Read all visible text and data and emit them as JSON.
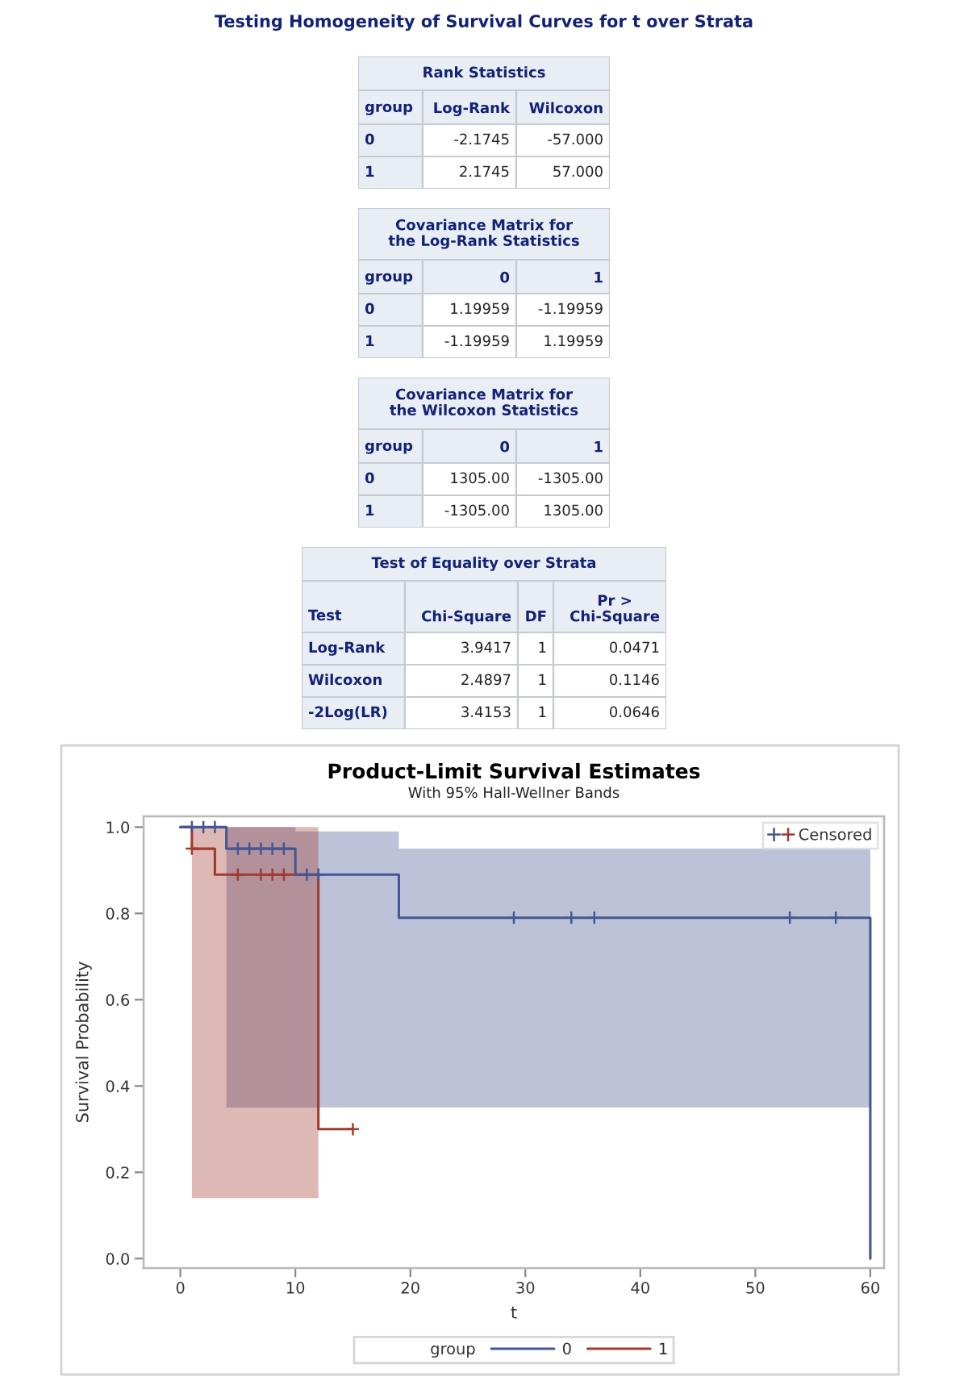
{
  "chart_data": [
    {
      "type": "other",
      "title": "Testing Homogeneity of Survival Curves for t over Strata"
    },
    {
      "type": "other",
      "title": "Rank Statistics",
      "categories": [
        "group",
        "Log-Rank",
        "Wilcoxon"
      ],
      "cell_labels": [
        [
          "0",
          "-2.1745",
          "-57.000"
        ],
        [
          "1",
          "2.1745",
          "57.000"
        ]
      ]
    },
    {
      "type": "other",
      "title": "Covariance Matrix for\nthe Log-Rank Statistics",
      "categories": [
        "group",
        "0",
        "1"
      ],
      "cell_labels": [
        [
          "0",
          "1.19959",
          "-1.19959"
        ],
        [
          "1",
          "-1.19959",
          "1.19959"
        ]
      ]
    },
    {
      "type": "other",
      "title": "Covariance Matrix for\nthe Wilcoxon Statistics",
      "categories": [
        "group",
        "0",
        "1"
      ],
      "cell_labels": [
        [
          "0",
          "1305.00",
          "-1305.00"
        ],
        [
          "1",
          "-1305.00",
          "1305.00"
        ]
      ]
    },
    {
      "type": "other",
      "title": "Test of Equality over Strata",
      "categories": [
        "Test",
        "Chi-Square",
        "DF",
        "Pr >\nChi-Square"
      ],
      "cell_labels": [
        [
          "Log-Rank",
          "3.9417",
          "1",
          "0.0471"
        ],
        [
          "Wilcoxon",
          "2.4897",
          "1",
          "0.1146"
        ],
        [
          "-2Log(LR)",
          "3.4153",
          "1",
          "0.0646"
        ]
      ]
    },
    {
      "type": "step",
      "title": "Product-Limit Survival Estimates",
      "subtitle": "With 95% Hall-Wellner Bands",
      "xlabel": "t",
      "ylabel": "Survival Probability",
      "legend_title": "group",
      "legend": "bottom",
      "xlim": [
        -3.2,
        61.2
      ],
      "ylim": [
        -0.022,
        1.025
      ],
      "xticks": [
        0,
        10,
        20,
        30,
        40,
        50,
        60
      ],
      "yticks": [
        {
          "value": 0,
          "label": "0.0"
        },
        {
          "value": 0.2,
          "label": "0.2"
        },
        {
          "value": 0.4,
          "label": "0.4"
        },
        {
          "value": 0.6,
          "label": "0.6"
        },
        {
          "value": 0.8,
          "label": "0.8"
        },
        {
          "value": 1,
          "label": "1.0"
        }
      ],
      "series": [
        {
          "name": "0",
          "color": "#445694",
          "x": [
            0,
            4,
            10,
            19,
            60
          ],
          "values": [
            1.0,
            0.95,
            0.89,
            0.79,
            0.0
          ],
          "lower": [
            null,
            0.35,
            0.35,
            0.35,
            0.35
          ],
          "upper": [
            null,
            1.0,
            0.99,
            0.95,
            0.95
          ]
        },
        {
          "name": "1",
          "color": "#a23a2e",
          "x": [
            0,
            1,
            3,
            12,
            15
          ],
          "values": [
            1.0,
            0.95,
            0.89,
            0.3,
            0.3
          ],
          "lower": [
            null,
            0.14,
            0.14,
            0.14,
            null
          ],
          "upper": [
            null,
            1.0,
            1.0,
            1.0,
            null
          ]
        },
        {
          "name": "Censored",
          "type": "scatter",
          "marker": "cross",
          "x": [
            1,
            2,
            3,
            5,
            6,
            7,
            8,
            9,
            11,
            12,
            29,
            34,
            36,
            53,
            57,
            1,
            5,
            7,
            8,
            9,
            15
          ],
          "values": [
            1.0,
            1.0,
            1.0,
            0.95,
            0.95,
            0.95,
            0.95,
            0.95,
            0.89,
            0.89,
            0.79,
            0.79,
            0.79,
            0.79,
            0.79,
            0.95,
            0.89,
            0.89,
            0.89,
            0.89,
            0.3
          ],
          "colors": [
            "#445694",
            "#445694",
            "#445694",
            "#445694",
            "#445694",
            "#445694",
            "#445694",
            "#445694",
            "#445694",
            "#445694",
            "#445694",
            "#445694",
            "#445694",
            "#445694",
            "#445694",
            "#a23a2e",
            "#a23a2e",
            "#a23a2e",
            "#a23a2e",
            "#a23a2e",
            "#a23a2e"
          ]
        }
      ]
    }
  ]
}
